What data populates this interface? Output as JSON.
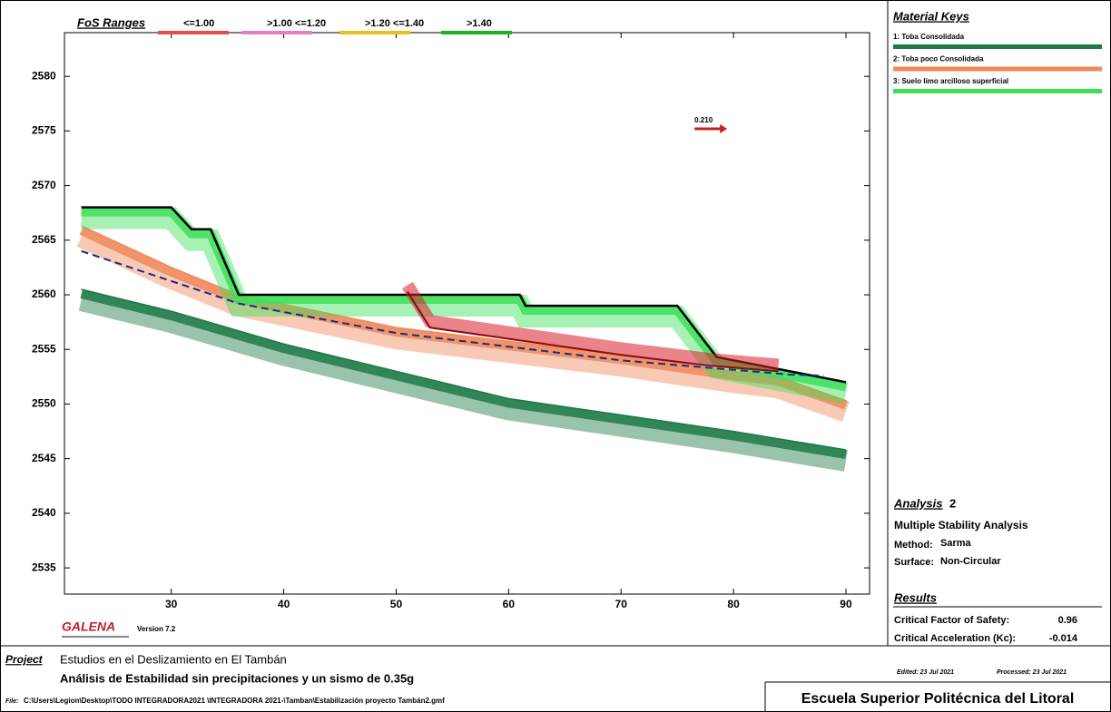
{
  "chart_data": {
    "type": "line",
    "xlim": [
      20.5,
      92.1
    ],
    "ylim": [
      2532.6,
      2584
    ],
    "xticks": [
      30,
      40,
      50,
      60,
      70,
      80,
      90
    ],
    "yticks": [
      2535,
      2540,
      2545,
      2550,
      2555,
      2560,
      2565,
      2570,
      2575,
      2580
    ],
    "series": [
      {
        "name": "1: Toba Consolidada",
        "color": "#1e7a46",
        "x": [
          22,
          30,
          40,
          50,
          60,
          70,
          80,
          90
        ],
        "values": [
          2560.5,
          2558.5,
          2555.5,
          2553,
          2550.5,
          2549,
          2547.5,
          2545.8
        ]
      },
      {
        "name": "2: Toba poco Consolidada",
        "color": "#ef8a5a",
        "x": [
          22,
          30,
          36,
          50,
          70,
          80,
          84,
          90
        ],
        "values": [
          2566.3,
          2562.5,
          2560,
          2557,
          2554.5,
          2553,
          2552.5,
          2550.3
        ]
      },
      {
        "name": "3: Suelo limo arcilloso superficial",
        "color": "#3ee05a",
        "x": [
          22,
          30,
          31.8,
          33.5,
          36,
          61,
          61.5,
          75,
          78.5,
          90
        ],
        "values": [
          2568,
          2568,
          2566,
          2566,
          2560,
          2560,
          2559,
          2559,
          2554.3,
          2552
        ]
      }
    ],
    "water_table": {
      "color": "#1a2a8a",
      "x": [
        22,
        36,
        50,
        70,
        85,
        88
      ],
      "values": [
        2564,
        2559.2,
        2556.5,
        2554,
        2552.7,
        2552.6
      ]
    },
    "critical_surface": {
      "color": "#d81e2a",
      "x": [
        51,
        53,
        70,
        78,
        84
      ],
      "values": [
        2560.3,
        2557,
        2554.5,
        2553.5,
        2553
      ]
    },
    "seismic_arrow": {
      "label": "0.210",
      "x": 77.5,
      "y": 2575.2,
      "color": "#c81e1e"
    }
  },
  "fos_ranges": {
    "title": "FoS Ranges",
    "items": [
      {
        "label": "<=1.00",
        "color": "#e05050"
      },
      {
        "label": ">1.00 <=1.20",
        "color": "#e080c0"
      },
      {
        "label": ">1.20 <=1.40",
        "color": "#e8c020"
      },
      {
        "label": ">1.40",
        "color": "#20b020"
      }
    ]
  },
  "material_keys": {
    "title": "Material Keys"
  },
  "analysis": {
    "title": "Analysis",
    "number": "2",
    "type": "Multiple Stability Analysis",
    "method_label": "Method:",
    "method": "Sarma",
    "surface_label": "Surface:",
    "surface": "Non-Circular"
  },
  "results": {
    "title": "Results",
    "fos_label": "Critical Factor of Safety:",
    "fos": "0.96",
    "kc_label": "Critical Acceleration (Kc):",
    "kc": "-0.014"
  },
  "dates": {
    "edited": "Edited: 23 Jul 2021",
    "processed": "Processed: 23 Jul 2021"
  },
  "brand": {
    "name": "GALENA",
    "version": "Version 7.2"
  },
  "project": {
    "label": "Project",
    "line1": "Estudios en el  Deslizamiento en El Tambán",
    "line2": "Análisis de Estabilidad sin precipitaciones y un sismo de 0.35g"
  },
  "file": {
    "label": "File:",
    "path": "C:\\Users\\Legion\\Desktop\\TODO INTEGRADORA2021 \\INTEGRADORA 2021-\\Tamban\\Estabilización proyecto Tambán2.gmf"
  },
  "institution": "Escuela Superior Politécnica del Litoral"
}
